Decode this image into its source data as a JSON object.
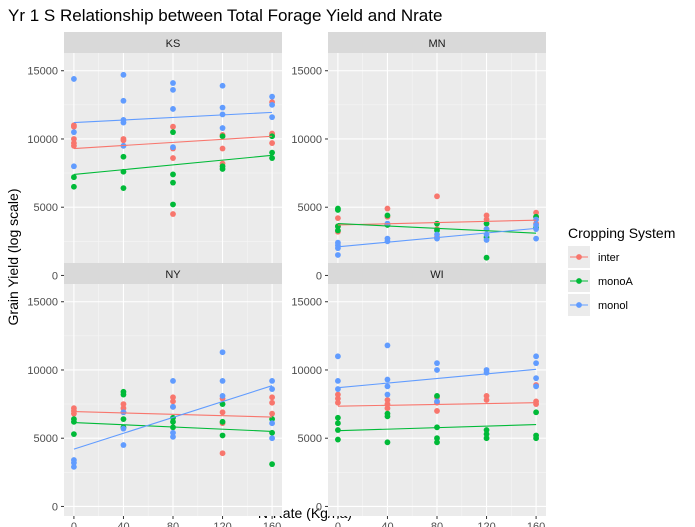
{
  "chart_data": {
    "type": "scatter",
    "title": "Yr 1 S Relationship between Total Forage Yield and Nrate",
    "xlabel": "N-Rate (Kg/ha)",
    "ylabel": "Grain Yield (log scale)",
    "xticks": [
      0,
      40,
      80,
      120,
      160
    ],
    "yticks": [
      0,
      5000,
      10000,
      15000
    ],
    "xlim": [
      -8,
      168
    ],
    "ylim": [
      -700,
      16300
    ],
    "grid": true,
    "legend": {
      "title": "Cropping System",
      "placement": "right",
      "entries": [
        "inter",
        "monoA",
        "monol"
      ]
    },
    "colors": {
      "inter": "#F8766D",
      "monoA": "#00BA38",
      "monol": "#619CFF"
    },
    "panels": [
      {
        "name": "KS",
        "series": [
          {
            "name": "inter",
            "points": [
              [
                0,
                11000
              ],
              [
                0,
                10900
              ],
              [
                0,
                10000
              ],
              [
                0,
                9700
              ],
              [
                0,
                9500
              ],
              [
                40,
                10000
              ],
              [
                40,
                9900
              ],
              [
                80,
                10900
              ],
              [
                80,
                9300
              ],
              [
                80,
                8600
              ],
              [
                80,
                4500
              ],
              [
                120,
                10300
              ],
              [
                120,
                9300
              ],
              [
                120,
                8200
              ],
              [
                160,
                12700
              ],
              [
                160,
                10400
              ],
              [
                160,
                10300
              ],
              [
                160,
                9700
              ]
            ],
            "fit": [
              9300,
              10200
            ]
          },
          {
            "name": "monoA",
            "points": [
              [
                0,
                7200
              ],
              [
                0,
                6500
              ],
              [
                40,
                8700
              ],
              [
                40,
                7600
              ],
              [
                40,
                6400
              ],
              [
                80,
                10500
              ],
              [
                80,
                7400
              ],
              [
                80,
                6800
              ],
              [
                80,
                5200
              ],
              [
                120,
                10200
              ],
              [
                120,
                8000
              ],
              [
                120,
                7800
              ],
              [
                160,
                10200
              ],
              [
                160,
                9000
              ],
              [
                160,
                8600
              ]
            ],
            "fit": [
              7400,
              8800
            ]
          },
          {
            "name": "monol",
            "points": [
              [
                0,
                14400
              ],
              [
                0,
                10500
              ],
              [
                0,
                8000
              ],
              [
                40,
                14700
              ],
              [
                40,
                12800
              ],
              [
                40,
                11400
              ],
              [
                40,
                11200
              ],
              [
                40,
                9500
              ],
              [
                80,
                14100
              ],
              [
                80,
                13600
              ],
              [
                80,
                12200
              ],
              [
                80,
                9400
              ],
              [
                120,
                13900
              ],
              [
                120,
                12300
              ],
              [
                120,
                11800
              ],
              [
                120,
                10800
              ],
              [
                160,
                13100
              ],
              [
                160,
                12500
              ],
              [
                160,
                11600
              ]
            ],
            "fit": [
              11200,
              11950
            ]
          }
        ]
      },
      {
        "name": "MN",
        "series": [
          {
            "name": "inter",
            "points": [
              [
                0,
                4200
              ],
              [
                0,
                3600
              ],
              [
                0,
                3200
              ],
              [
                40,
                4900
              ],
              [
                40,
                4300
              ],
              [
                80,
                5800
              ],
              [
                80,
                3400
              ],
              [
                80,
                2800
              ],
              [
                120,
                4400
              ],
              [
                120,
                4100
              ],
              [
                120,
                3400
              ],
              [
                160,
                4600
              ],
              [
                160,
                4300
              ],
              [
                160,
                3800
              ]
            ],
            "fit": [
              3700,
              4050
            ]
          },
          {
            "name": "monoA",
            "points": [
              [
                0,
                4900
              ],
              [
                0,
                4800
              ],
              [
                0,
                3600
              ],
              [
                0,
                3300
              ],
              [
                40,
                4400
              ],
              [
                40,
                3700
              ],
              [
                80,
                3800
              ],
              [
                80,
                3300
              ],
              [
                120,
                3800
              ],
              [
                120,
                2800
              ],
              [
                120,
                1300
              ],
              [
                160,
                4300
              ],
              [
                160,
                3500
              ]
            ],
            "fit": [
              3800,
              3100
            ]
          },
          {
            "name": "monol",
            "points": [
              [
                0,
                2400
              ],
              [
                0,
                2200
              ],
              [
                0,
                2000
              ],
              [
                0,
                1500
              ],
              [
                40,
                3800
              ],
              [
                40,
                2700
              ],
              [
                40,
                2500
              ],
              [
                80,
                3000
              ],
              [
                80,
                2700
              ],
              [
                120,
                3400
              ],
              [
                120,
                3000
              ],
              [
                120,
                2600
              ],
              [
                160,
                4100
              ],
              [
                160,
                3700
              ],
              [
                160,
                3400
              ],
              [
                160,
                2700
              ]
            ],
            "fit": [
              2100,
              3450
            ]
          }
        ]
      },
      {
        "name": "NY",
        "series": [
          {
            "name": "inter",
            "points": [
              [
                0,
                7200
              ],
              [
                0,
                7000
              ],
              [
                0,
                6800
              ],
              [
                40,
                7500
              ],
              [
                40,
                7200
              ],
              [
                40,
                6900
              ],
              [
                80,
                8000
              ],
              [
                80,
                7700
              ],
              [
                80,
                7300
              ],
              [
                120,
                7900
              ],
              [
                120,
                6900
              ],
              [
                120,
                6100
              ],
              [
                120,
                3900
              ],
              [
                160,
                8000
              ],
              [
                160,
                7600
              ],
              [
                160,
                6800
              ]
            ],
            "fit": [
              6950,
              6550
            ]
          },
          {
            "name": "monoA",
            "points": [
              [
                0,
                6400
              ],
              [
                0,
                6200
              ],
              [
                0,
                5300
              ],
              [
                40,
                8400
              ],
              [
                40,
                8200
              ],
              [
                40,
                6400
              ],
              [
                40,
                5800
              ],
              [
                80,
                6500
              ],
              [
                80,
                6200
              ],
              [
                80,
                5800
              ],
              [
                120,
                7500
              ],
              [
                120,
                6200
              ],
              [
                120,
                5200
              ],
              [
                160,
                6400
              ],
              [
                160,
                5400
              ],
              [
                160,
                3100
              ]
            ],
            "fit": [
              6150,
              5500
            ]
          },
          {
            "name": "monol",
            "points": [
              [
                0,
                3400
              ],
              [
                0,
                3200
              ],
              [
                0,
                2900
              ],
              [
                40,
                6900
              ],
              [
                40,
                5700
              ],
              [
                40,
                4500
              ],
              [
                80,
                9200
              ],
              [
                80,
                7300
              ],
              [
                80,
                5400
              ],
              [
                80,
                5100
              ],
              [
                120,
                11300
              ],
              [
                120,
                9200
              ],
              [
                120,
                8100
              ],
              [
                160,
                9200
              ],
              [
                160,
                8600
              ],
              [
                160,
                6100
              ],
              [
                160,
                5000
              ]
            ],
            "fit": [
              4200,
              8850
            ]
          }
        ]
      },
      {
        "name": "WI",
        "series": [
          {
            "name": "inter",
            "points": [
              [
                0,
                8200
              ],
              [
                0,
                7900
              ],
              [
                0,
                7600
              ],
              [
                40,
                7800
              ],
              [
                40,
                7500
              ],
              [
                40,
                7200
              ],
              [
                80,
                8000
              ],
              [
                80,
                7600
              ],
              [
                80,
                7000
              ],
              [
                120,
                8100
              ],
              [
                120,
                7800
              ],
              [
                160,
                8900
              ],
              [
                160,
                7700
              ],
              [
                160,
                7500
              ]
            ],
            "fit": [
              7350,
              7600
            ]
          },
          {
            "name": "monoA",
            "points": [
              [
                0,
                6500
              ],
              [
                0,
                6100
              ],
              [
                0,
                5600
              ],
              [
                0,
                4900
              ],
              [
                40,
                6800
              ],
              [
                40,
                6600
              ],
              [
                40,
                4700
              ],
              [
                80,
                8100
              ],
              [
                80,
                5800
              ],
              [
                80,
                5000
              ],
              [
                80,
                4700
              ],
              [
                120,
                5600
              ],
              [
                120,
                5300
              ],
              [
                120,
                5000
              ],
              [
                160,
                6900
              ],
              [
                160,
                5200
              ],
              [
                160,
                5000
              ]
            ],
            "fit": [
              5550,
              6000
            ]
          },
          {
            "name": "monol",
            "points": [
              [
                0,
                11000
              ],
              [
                0,
                9200
              ],
              [
                0,
                8600
              ],
              [
                40,
                11800
              ],
              [
                40,
                9300
              ],
              [
                40,
                8800
              ],
              [
                40,
                8200
              ],
              [
                80,
                10500
              ],
              [
                80,
                10000
              ],
              [
                80,
                7700
              ],
              [
                120,
                10000
              ],
              [
                120,
                9800
              ],
              [
                160,
                11000
              ],
              [
                160,
                10500
              ],
              [
                160,
                9400
              ],
              [
                160,
                8800
              ]
            ],
            "fit": [
              8700,
              10050
            ]
          }
        ]
      }
    ]
  }
}
